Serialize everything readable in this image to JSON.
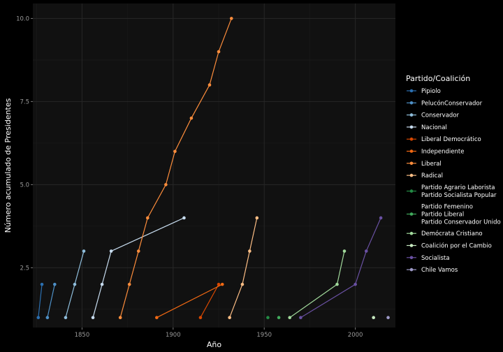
{
  "chart_data": {
    "type": "line",
    "title": "",
    "xlabel": "Año",
    "ylabel": "Número acumulado de Presidentes",
    "xlim": [
      1823,
      2022
    ],
    "ylim": [
      0.7,
      10.45
    ],
    "x_ticks": [
      1850,
      1900,
      1950,
      2000
    ],
    "y_ticks": [
      2.5,
      5.0,
      7.5,
      10.0
    ],
    "y_tick_labels": [
      "2.5",
      "5.0",
      "7.5",
      "10.0"
    ],
    "grid": true,
    "legend_title": "Partido/Coalición",
    "legend_position": "right",
    "background": "#111111",
    "series": [
      {
        "name": "Pipiolo",
        "color": "#2b6fb0",
        "points": [
          [
            1826,
            1
          ],
          [
            1828,
            2
          ]
        ]
      },
      {
        "name": "PelucónConservador",
        "color": "#4e90c7",
        "points": [
          [
            1831,
            1
          ],
          [
            1835,
            2
          ]
        ]
      },
      {
        "name": "Conservador",
        "color": "#8fbedc",
        "points": [
          [
            1841,
            1
          ],
          [
            1846,
            2
          ],
          [
            1851,
            3
          ]
        ]
      },
      {
        "name": "Nacional",
        "color": "#c7dcef",
        "points": [
          [
            1856,
            1
          ],
          [
            1861,
            2
          ],
          [
            1866,
            3
          ],
          [
            1906,
            4
          ]
        ]
      },
      {
        "name": "Liberal Democrático",
        "color": "#d94801",
        "points": [
          [
            1915,
            1
          ],
          [
            1925,
            2
          ]
        ]
      },
      {
        "name": "Independiente",
        "color": "#f16913",
        "points": [
          [
            1891,
            1
          ],
          [
            1927,
            2
          ]
        ]
      },
      {
        "name": "Liberal",
        "color": "#fd8d3c",
        "points": [
          [
            1871,
            1
          ],
          [
            1876,
            2
          ],
          [
            1881,
            3
          ],
          [
            1886,
            4
          ],
          [
            1896,
            5
          ],
          [
            1901,
            6
          ],
          [
            1910,
            7
          ],
          [
            1920,
            8
          ],
          [
            1925,
            9
          ],
          [
            1932,
            10
          ]
        ]
      },
      {
        "name": "Radical",
        "color": "#fdbe85",
        "points": [
          [
            1931,
            1
          ],
          [
            1938,
            2
          ],
          [
            1942,
            3
          ],
          [
            1946,
            4
          ]
        ]
      },
      {
        "name": "Partido Agrario Laborista\nPartido Socialista Popular",
        "color": "#238b45",
        "points": [
          [
            1952,
            1
          ]
        ]
      },
      {
        "name": "Partido Femenino\nPartido Liberal\nPartido Conservador Unido",
        "color": "#41ab5d",
        "points": [
          [
            1958,
            1
          ]
        ]
      },
      {
        "name": "Demócrata Cristiano",
        "color": "#a1d99b",
        "points": [
          [
            1964,
            1
          ],
          [
            1990,
            2
          ],
          [
            1994,
            3
          ]
        ]
      },
      {
        "name": "Coalición por el Cambio",
        "color": "#c7e9c0",
        "points": [
          [
            2010,
            1
          ]
        ]
      },
      {
        "name": "Socialista",
        "color": "#6a51a3",
        "points": [
          [
            1970,
            1
          ],
          [
            2000,
            2
          ],
          [
            2006,
            3
          ],
          [
            2014,
            4
          ]
        ]
      },
      {
        "name": "Chile Vamos",
        "color": "#9e9ac8",
        "points": [
          [
            2018,
            1
          ]
        ]
      }
    ]
  }
}
